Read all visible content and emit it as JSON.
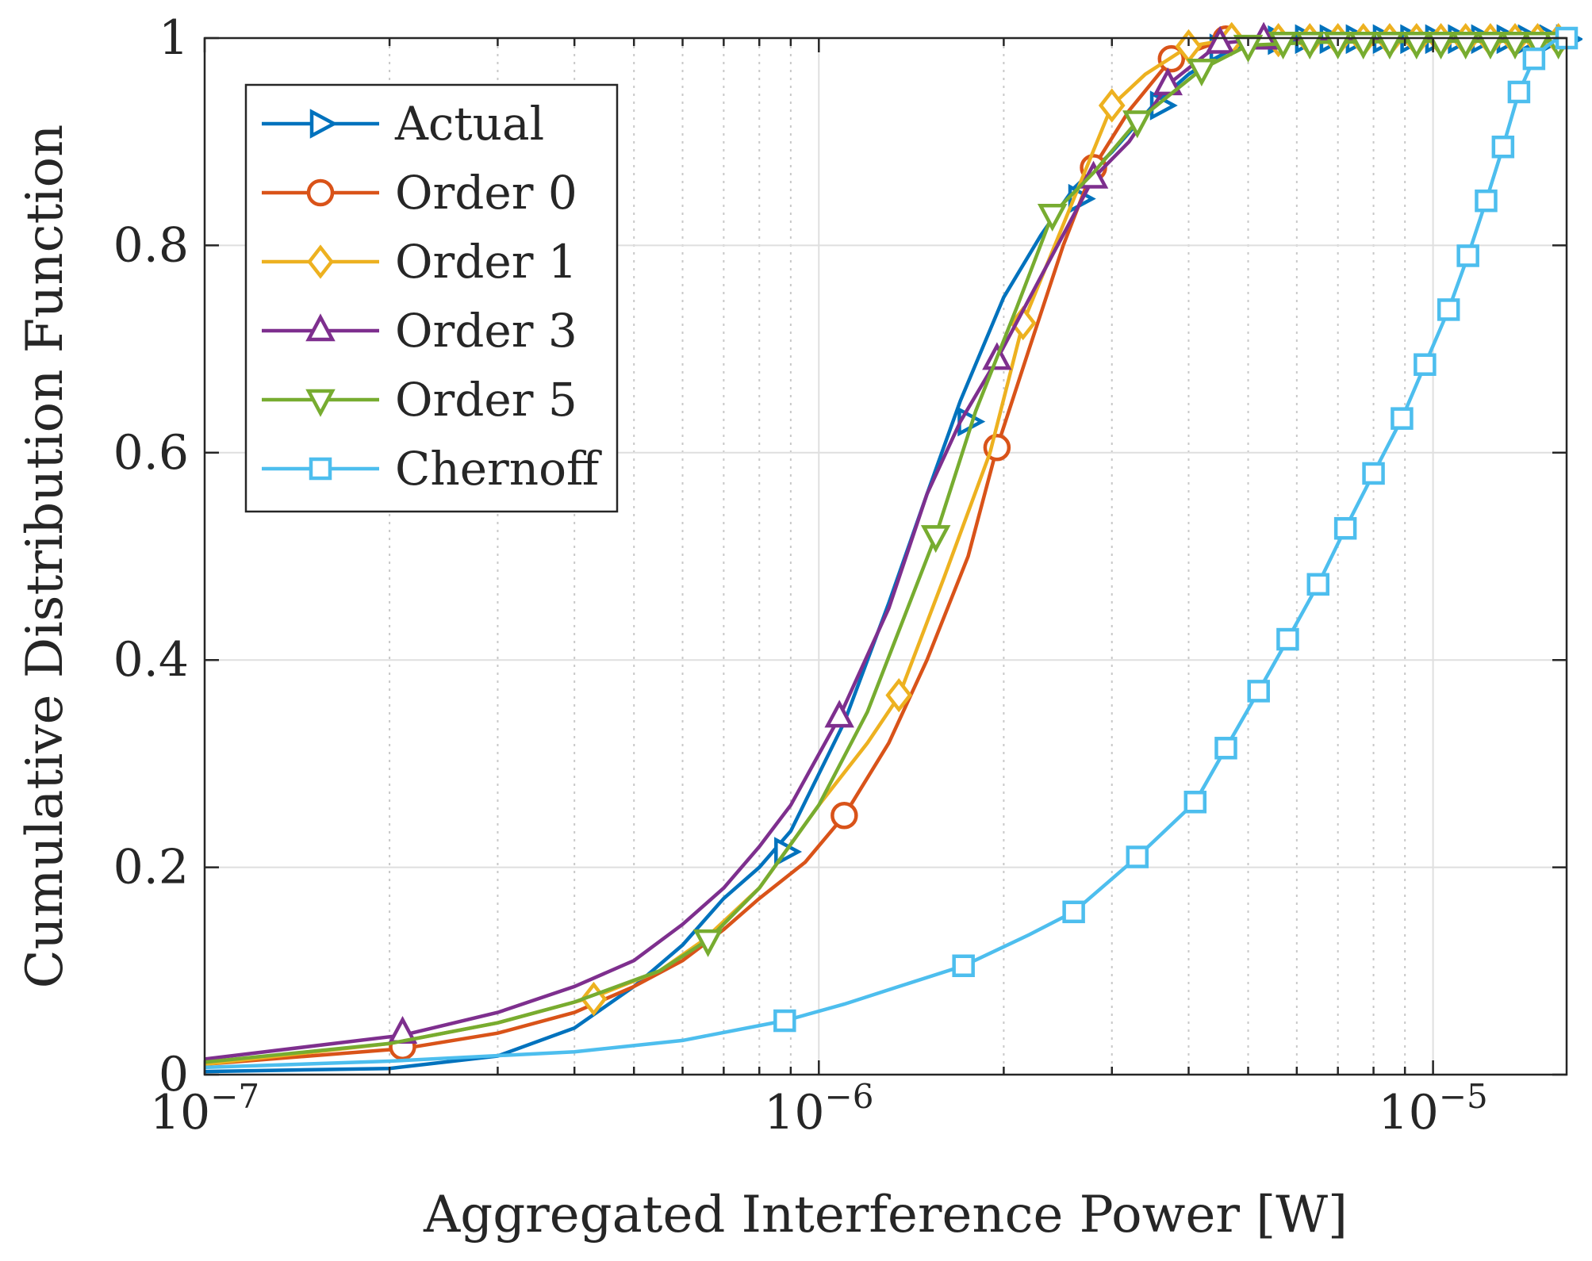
{
  "chart_data": {
    "type": "line",
    "xscale": "log",
    "xlabel": "Aggregated Interference Power [W]",
    "ylabel": "Cumulative Distribution Function",
    "xlim": [
      1e-07,
      1.65e-05
    ],
    "ylim": [
      0,
      1
    ],
    "x_ticks": [
      {
        "value": 1e-07,
        "base": "10",
        "exp": "−7"
      },
      {
        "value": 1e-06,
        "base": "10",
        "exp": "−6"
      },
      {
        "value": 1e-05,
        "base": "10",
        "exp": "−5"
      }
    ],
    "y_ticks": [
      {
        "value": 0,
        "label": "0"
      },
      {
        "value": 0.2,
        "label": "0.2"
      },
      {
        "value": 0.4,
        "label": "0.4"
      },
      {
        "value": 0.6,
        "label": "0.6"
      },
      {
        "value": 0.8,
        "label": "0.8"
      },
      {
        "value": 1,
        "label": "1"
      }
    ],
    "grid": true,
    "legend_position": "top-left",
    "series": [
      {
        "name": "Actual",
        "color": "#0072BD",
        "marker": "triangle-right",
        "curve": {
          "x": [
            1e-07,
            2e-07,
            3e-07,
            4e-07,
            5e-07,
            6e-07,
            7e-07,
            8e-07,
            9e-07,
            1.1e-06,
            1.3e-06,
            1.5e-06,
            1.7e-06,
            2e-06,
            2.3e-06,
            2.6e-06,
            3e-06,
            3.5e-06,
            4e-06,
            4.5e-06,
            5e-06,
            7e-06,
            1e-05,
            1.65e-05
          ],
          "y": [
            0.003,
            0.006,
            0.018,
            0.045,
            0.085,
            0.125,
            0.17,
            0.2,
            0.235,
            0.34,
            0.455,
            0.56,
            0.65,
            0.75,
            0.81,
            0.855,
            0.89,
            0.935,
            0.965,
            0.985,
            0.995,
            0.998,
            0.999,
            1.0
          ]
        },
        "markers": {
          "x": [
            8.8e-07,
            1.75e-06,
            2.65e-06,
            3.6e-06,
            4.5e-06,
            5.6e-06,
            6.2e-06,
            6.8e-06,
            7.5e-06,
            8.3e-06,
            9.2e-06,
            1.01e-05,
            1.1e-05,
            1.2e-05,
            1.32e-05,
            1.43e-05,
            1.55e-05,
            1.65e-05
          ],
          "y": [
            0.215,
            0.63,
            0.845,
            0.935,
            0.99,
            0.998,
            0.999,
            0.999,
            0.999,
            0.999,
            0.999,
            0.999,
            0.999,
            0.999,
            0.999,
            0.999,
            0.999,
            0.999
          ]
        }
      },
      {
        "name": "Order 0",
        "color": "#D95319",
        "marker": "circle",
        "curve": {
          "x": [
            1e-07,
            2.1e-07,
            3e-07,
            4e-07,
            5e-07,
            6e-07,
            7e-07,
            8e-07,
            9.5e-07,
            1.1e-06,
            1.3e-06,
            1.5e-06,
            1.75e-06,
            1.95e-06,
            2.2e-06,
            2.5e-06,
            2.8e-06,
            3.2e-06,
            3.75e-06,
            4.6e-06,
            5.5e-06,
            8e-06,
            1.65e-05
          ],
          "y": [
            0.01,
            0.025,
            0.04,
            0.06,
            0.085,
            0.11,
            0.14,
            0.17,
            0.205,
            0.25,
            0.32,
            0.4,
            0.5,
            0.605,
            0.7,
            0.8,
            0.875,
            0.93,
            0.98,
            0.999,
            0.999,
            0.999,
            0.999
          ]
        },
        "markers": {
          "x": [
            2.1e-07,
            1.1e-06,
            1.95e-06,
            2.8e-06,
            3.75e-06,
            4.6e-06
          ],
          "y": [
            0.027,
            0.25,
            0.605,
            0.875,
            0.98,
            0.999
          ]
        }
      },
      {
        "name": "Order 1",
        "color": "#EDB120",
        "marker": "diamond",
        "curve": {
          "x": [
            1e-07,
            2e-07,
            3e-07,
            4.3e-07,
            5.5e-07,
            6.5e-07,
            8e-07,
            1e-06,
            1.2e-06,
            1.35e-06,
            1.6e-06,
            1.9e-06,
            2.15e-06,
            2.5e-06,
            3e-06,
            3.4e-06,
            4e-06,
            4.7e-06,
            6e-06,
            1e-05,
            1.65e-05
          ],
          "y": [
            0.01,
            0.03,
            0.05,
            0.075,
            0.1,
            0.13,
            0.18,
            0.26,
            0.32,
            0.365,
            0.48,
            0.6,
            0.725,
            0.82,
            0.935,
            0.965,
            0.992,
            0.999,
            0.999,
            0.999,
            0.999
          ]
        },
        "markers": {
          "x": [
            4.3e-07,
            1.35e-06,
            2.15e-06,
            3e-06,
            4e-06,
            4.7e-06,
            5.6e-06,
            6.3e-06,
            7e-06,
            7.7e-06,
            8.5e-06,
            9.4e-06,
            1.03e-05,
            1.13e-05,
            1.24e-05,
            1.36e-05,
            1.48e-05,
            1.6e-05
          ],
          "y": [
            0.073,
            0.366,
            0.725,
            0.935,
            0.992,
            0.999,
            0.998,
            0.998,
            0.998,
            0.998,
            0.998,
            0.998,
            0.998,
            0.998,
            0.998,
            0.998,
            0.998,
            0.998
          ]
        }
      },
      {
        "name": "Order 3",
        "color": "#7E2F8E",
        "marker": "triangle-up",
        "curve": {
          "x": [
            1e-07,
            2.1e-07,
            3e-07,
            4e-07,
            5e-07,
            6e-07,
            7e-07,
            8e-07,
            9e-07,
            1.08e-06,
            1.3e-06,
            1.5e-06,
            1.7e-06,
            1.95e-06,
            2.3e-06,
            2.8e-06,
            3.2e-06,
            3.7e-06,
            4.5e-06,
            5.3e-06,
            7e-06,
            1e-05,
            1.65e-05
          ],
          "y": [
            0.015,
            0.038,
            0.06,
            0.085,
            0.11,
            0.145,
            0.18,
            0.22,
            0.26,
            0.345,
            0.45,
            0.56,
            0.63,
            0.69,
            0.77,
            0.865,
            0.9,
            0.955,
            0.995,
            0.999,
            0.999,
            0.999,
            0.999
          ]
        },
        "markers": {
          "x": [
            2.1e-07,
            1.08e-06,
            1.95e-06,
            2.8e-06,
            3.7e-06,
            4.5e-06,
            5.3e-06
          ],
          "y": [
            0.04,
            0.345,
            0.69,
            0.865,
            0.955,
            0.995,
            0.999
          ]
        }
      },
      {
        "name": "Order 5",
        "color": "#77AC30",
        "marker": "triangle-down",
        "curve": {
          "x": [
            1e-07,
            2e-07,
            3e-07,
            4e-07,
            5.5e-07,
            6.6e-07,
            8e-07,
            1e-06,
            1.2e-06,
            1.55e-06,
            1.8e-06,
            2.1e-06,
            2.4e-06,
            2.8e-06,
            3.3e-06,
            4.2e-06,
            5e-06,
            6.5e-06,
            1e-05,
            1.65e-05
          ],
          "y": [
            0.012,
            0.03,
            0.05,
            0.07,
            0.1,
            0.13,
            0.18,
            0.26,
            0.35,
            0.52,
            0.64,
            0.74,
            0.83,
            0.87,
            0.92,
            0.97,
            0.993,
            0.996,
            0.997,
            0.997
          ]
        },
        "markers": {
          "x": [
            6.6e-07,
            1.55e-06,
            2.4e-06,
            3.3e-06,
            4.2e-06,
            5e-06,
            5.7e-06,
            6.3e-06,
            7e-06,
            7.7e-06,
            8.5e-06,
            9.4e-06,
            1.03e-05,
            1.13e-05,
            1.24e-05,
            1.36e-05,
            1.48e-05,
            1.6e-05
          ],
          "y": [
            0.13,
            0.52,
            0.83,
            0.92,
            0.97,
            0.993,
            0.996,
            0.996,
            0.996,
            0.996,
            0.996,
            0.996,
            0.996,
            0.996,
            0.996,
            0.996,
            0.996,
            0.996
          ]
        }
      },
      {
        "name": "Chernoff",
        "color": "#4DBEEE",
        "marker": "square",
        "curve": {
          "x": [
            1e-07,
            2e-07,
            4e-07,
            6e-07,
            8.8e-07,
            1.1e-06,
            1.35e-06,
            1.72e-06,
            2.2e-06,
            2.6e-06,
            3.3e-06,
            4.1e-06,
            4.6e-06,
            5.2e-06,
            5.8e-06,
            6.5e-06,
            7.2e-06,
            8e-06,
            8.9e-06,
            9.7e-06,
            1.06e-05,
            1.14e-05,
            1.22e-05,
            1.3e-05,
            1.38e-05,
            1.46e-05,
            1.53e-05,
            1.6e-05,
            1.65e-05
          ],
          "y": [
            0.007,
            0.013,
            0.022,
            0.033,
            0.052,
            0.068,
            0.085,
            0.105,
            0.135,
            0.157,
            0.21,
            0.263,
            0.315,
            0.37,
            0.42,
            0.473,
            0.527,
            0.58,
            0.633,
            0.685,
            0.738,
            0.79,
            0.843,
            0.895,
            0.948,
            0.98,
            0.992,
            1.0,
            1.0
          ]
        },
        "markers": {
          "x": [
            8.8e-07,
            1.72e-06,
            2.6e-06,
            3.3e-06,
            4.1e-06,
            4.6e-06,
            5.2e-06,
            5.8e-06,
            6.5e-06,
            7.2e-06,
            8e-06,
            8.9e-06,
            9.7e-06,
            1.06e-05,
            1.14e-05,
            1.22e-05,
            1.3e-05,
            1.38e-05,
            1.46e-05,
            1.65e-05
          ],
          "y": [
            0.052,
            0.105,
            0.157,
            0.21,
            0.263,
            0.315,
            0.37,
            0.42,
            0.473,
            0.527,
            0.58,
            0.633,
            0.685,
            0.738,
            0.79,
            0.843,
            0.895,
            0.948,
            0.98,
            1.0
          ]
        }
      }
    ]
  }
}
